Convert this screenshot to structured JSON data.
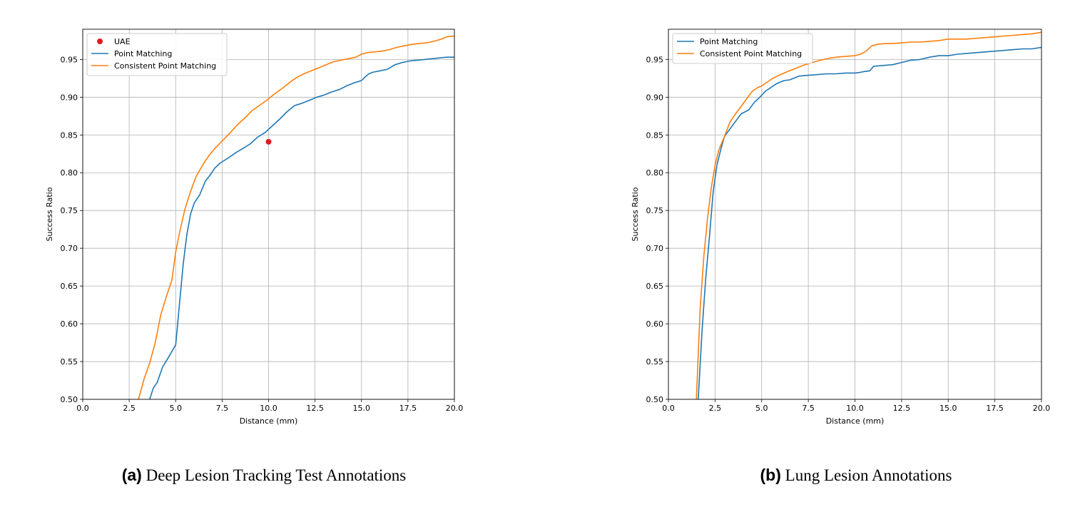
{
  "chart_data": [
    {
      "type": "line",
      "xlabel": "Distance (mm)",
      "ylabel": "Success Ratio",
      "xlim": [
        0,
        20
      ],
      "ylim": [
        0.5,
        0.99
      ],
      "xticks": [
        "0.0",
        "2.5",
        "5.0",
        "7.5",
        "10.0",
        "12.5",
        "15.0",
        "17.5",
        "20.0"
      ],
      "yticks": [
        "0.50",
        "0.55",
        "0.60",
        "0.65",
        "0.70",
        "0.75",
        "0.80",
        "0.85",
        "0.90",
        "0.95"
      ],
      "grid": true,
      "legend_position": "upper-left",
      "series": [
        {
          "name": "UAE",
          "kind": "scatter",
          "color": "#e31a1c",
          "x": [
            10.0
          ],
          "y": [
            0.841
          ]
        },
        {
          "name": "Point Matching",
          "kind": "line",
          "color": "#1f77b4",
          "x": [
            3.6,
            3.8,
            4.0,
            4.3,
            4.6,
            5.0,
            5.2,
            5.4,
            5.6,
            5.8,
            6.0,
            6.3,
            6.6,
            6.8,
            7.1,
            7.4,
            7.8,
            8.2,
            8.6,
            9.0,
            9.4,
            9.8,
            10.2,
            10.6,
            11.0,
            11.4,
            11.8,
            12.2,
            12.6,
            13.0,
            13.4,
            13.8,
            14.2,
            14.6,
            15.0,
            15.2,
            15.4,
            15.6,
            16.0,
            16.4,
            16.8,
            17.2,
            17.6,
            18.0,
            18.4,
            18.8,
            19.2,
            19.6,
            20.0
          ],
          "y": [
            0.5,
            0.515,
            0.522,
            0.543,
            0.555,
            0.572,
            0.625,
            0.678,
            0.718,
            0.745,
            0.76,
            0.771,
            0.789,
            0.795,
            0.806,
            0.813,
            0.819,
            0.826,
            0.832,
            0.838,
            0.847,
            0.853,
            0.862,
            0.871,
            0.881,
            0.889,
            0.892,
            0.896,
            0.9,
            0.903,
            0.907,
            0.91,
            0.915,
            0.919,
            0.922,
            0.927,
            0.931,
            0.933,
            0.935,
            0.937,
            0.943,
            0.946,
            0.948,
            0.949,
            0.95,
            0.951,
            0.952,
            0.953,
            0.953
          ]
        },
        {
          "name": "Consistent Point Matching",
          "kind": "line",
          "color": "#ff7f0e",
          "x": [
            3.0,
            3.3,
            3.6,
            3.9,
            4.2,
            4.5,
            4.8,
            5.0,
            5.2,
            5.5,
            5.8,
            6.1,
            6.5,
            6.8,
            7.1,
            7.5,
            7.9,
            8.3,
            8.7,
            9.1,
            9.5,
            9.9,
            10.3,
            10.7,
            11.1,
            11.5,
            11.9,
            12.3,
            12.7,
            13.1,
            13.5,
            13.9,
            14.3,
            14.7,
            15.0,
            15.3,
            15.7,
            16.1,
            16.5,
            16.9,
            17.3,
            17.7,
            18.1,
            18.5,
            18.9,
            19.3,
            19.6,
            20.0
          ],
          "y": [
            0.5,
            0.527,
            0.548,
            0.575,
            0.612,
            0.636,
            0.658,
            0.695,
            0.72,
            0.752,
            0.775,
            0.795,
            0.812,
            0.823,
            0.832,
            0.842,
            0.852,
            0.863,
            0.872,
            0.882,
            0.889,
            0.896,
            0.904,
            0.911,
            0.919,
            0.926,
            0.931,
            0.935,
            0.939,
            0.943,
            0.947,
            0.949,
            0.951,
            0.953,
            0.957,
            0.959,
            0.96,
            0.961,
            0.963,
            0.966,
            0.968,
            0.97,
            0.971,
            0.972,
            0.974,
            0.977,
            0.98,
            0.981
          ]
        }
      ],
      "caption_tag": "(a)",
      "caption_text": "Deep Lesion Tracking Test Annotations"
    },
    {
      "type": "line",
      "xlabel": "Distance (mm)",
      "ylabel": "Success Ratio",
      "xlim": [
        0,
        20
      ],
      "ylim": [
        0.5,
        0.99
      ],
      "xticks": [
        "0.0",
        "2.5",
        "5.0",
        "7.5",
        "10.0",
        "12.5",
        "15.0",
        "17.5",
        "20.0"
      ],
      "yticks": [
        "0.50",
        "0.55",
        "0.60",
        "0.65",
        "0.70",
        "0.75",
        "0.80",
        "0.85",
        "0.90",
        "0.95"
      ],
      "grid": true,
      "legend_position": "upper-left",
      "series": [
        {
          "name": "Point Matching",
          "kind": "line",
          "color": "#1f77b4",
          "x": [
            1.6,
            1.8,
            2.0,
            2.2,
            2.4,
            2.6,
            2.8,
            3.0,
            3.3,
            3.6,
            3.9,
            4.3,
            4.6,
            4.9,
            5.2,
            5.5,
            5.8,
            6.2,
            6.5,
            7.0,
            7.5,
            8.0,
            8.5,
            9.0,
            9.5,
            10.0,
            10.3,
            10.5,
            10.8,
            11.0,
            11.5,
            12.0,
            12.5,
            13.0,
            13.5,
            14.0,
            14.5,
            15.0,
            15.5,
            16.0,
            16.5,
            17.0,
            17.5,
            18.0,
            18.5,
            19.0,
            19.5,
            20.0
          ],
          "y": [
            0.5,
            0.59,
            0.66,
            0.715,
            0.775,
            0.81,
            0.83,
            0.848,
            0.858,
            0.868,
            0.878,
            0.883,
            0.893,
            0.9,
            0.908,
            0.913,
            0.918,
            0.922,
            0.923,
            0.928,
            0.929,
            0.93,
            0.931,
            0.931,
            0.932,
            0.932,
            0.933,
            0.934,
            0.935,
            0.941,
            0.942,
            0.943,
            0.946,
            0.949,
            0.95,
            0.953,
            0.955,
            0.955,
            0.957,
            0.958,
            0.959,
            0.96,
            0.961,
            0.962,
            0.963,
            0.964,
            0.964,
            0.966
          ]
        },
        {
          "name": "Consistent Point Matching",
          "kind": "line",
          "color": "#ff7f0e",
          "x": [
            1.5,
            1.7,
            1.9,
            2.1,
            2.3,
            2.5,
            2.7,
            3.0,
            3.3,
            3.6,
            3.9,
            4.2,
            4.5,
            4.8,
            5.0,
            5.3,
            5.6,
            6.0,
            6.4,
            6.8,
            7.2,
            7.6,
            8.0,
            8.5,
            9.0,
            9.5,
            10.0,
            10.3,
            10.6,
            10.9,
            11.2,
            11.6,
            12.0,
            12.5,
            13.0,
            13.5,
            14.0,
            14.5,
            15.0,
            15.5,
            16.0,
            16.5,
            17.0,
            17.5,
            18.0,
            18.5,
            19.0,
            19.5,
            20.0
          ],
          "y": [
            0.5,
            0.62,
            0.69,
            0.74,
            0.78,
            0.81,
            0.83,
            0.848,
            0.867,
            0.878,
            0.888,
            0.898,
            0.908,
            0.913,
            0.915,
            0.92,
            0.925,
            0.93,
            0.934,
            0.938,
            0.942,
            0.945,
            0.948,
            0.951,
            0.953,
            0.954,
            0.955,
            0.957,
            0.961,
            0.968,
            0.97,
            0.971,
            0.971,
            0.972,
            0.973,
            0.973,
            0.974,
            0.975,
            0.977,
            0.977,
            0.977,
            0.978,
            0.979,
            0.98,
            0.981,
            0.982,
            0.983,
            0.984,
            0.986
          ]
        }
      ],
      "caption_tag": "(b)",
      "caption_text": "Lung Lesion Annotations"
    }
  ]
}
